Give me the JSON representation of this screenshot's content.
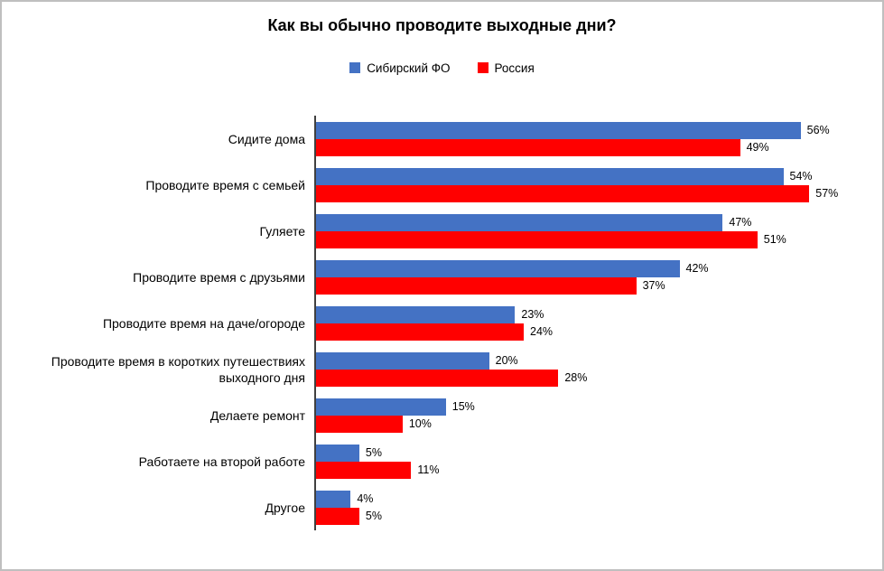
{
  "chart_data": {
    "type": "bar",
    "orientation": "horizontal",
    "title": "Как вы обычно проводите выходные дни?",
    "categories": [
      "Сидите дома",
      "Проводите время с семьей",
      "Гуляете",
      "Проводите время с друзьями",
      "Проводите время на даче/огороде",
      "Проводите время в коротких путешествиях выходного дня",
      "Делаете ремонт",
      "Работаете на второй работе",
      "Другое"
    ],
    "series": [
      {
        "name": "Сибирский ФО",
        "color": "#4472C4",
        "values": [
          56,
          54,
          47,
          42,
          23,
          20,
          15,
          5,
          4
        ]
      },
      {
        "name": "Россия",
        "color": "#FF0000",
        "values": [
          49,
          57,
          51,
          37,
          24,
          28,
          10,
          11,
          5
        ]
      }
    ],
    "value_suffix": "%",
    "xlim": [
      0,
      60
    ],
    "grid": false,
    "legend_position": "top",
    "axis_ticks_visible": false
  },
  "colors": {
    "background": "#FFFFFF",
    "frame_border": "#BFBFBF",
    "axis_line": "#404040",
    "text": "#000000"
  }
}
